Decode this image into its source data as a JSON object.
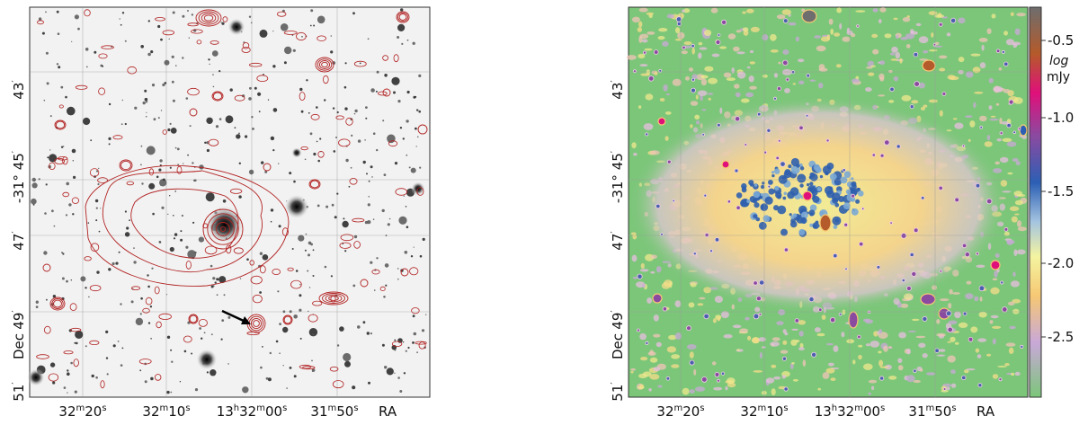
{
  "left_panel": {
    "x_ticks": [
      {
        "main": "32",
        "sup1": "m",
        "mid": "20",
        "sup2": "s"
      },
      {
        "main": "32",
        "sup1": "m",
        "mid": "10",
        "sup2": "s"
      },
      {
        "main": "13",
        "sup1": "h",
        "mid": "32",
        "sup2": "m",
        "tail": "00",
        "sup3": "s"
      },
      {
        "main": "31",
        "sup1": "m",
        "mid": "50",
        "sup2": "s"
      }
    ],
    "x_axis_label": "RA",
    "y_ticks": [
      {
        "text": "43",
        "prime": "′"
      },
      {
        "text": "-31° 45",
        "prime": "′"
      },
      {
        "text": "47",
        "prime": "′"
      },
      {
        "text": "49",
        "prime": "′"
      },
      {
        "text": "51",
        "prime": "′"
      }
    ],
    "y_axis_label": "Dec",
    "contour_color": "#b22222"
  },
  "right_panel": {
    "x_ticks": [
      {
        "main": "32",
        "sup1": "m",
        "mid": "20",
        "sup2": "s"
      },
      {
        "main": "32",
        "sup1": "m",
        "mid": "10",
        "sup2": "s"
      },
      {
        "main": "13",
        "sup1": "h",
        "mid": "32",
        "sup2": "m",
        "tail": "00",
        "sup3": "s"
      },
      {
        "main": "31",
        "sup1": "m",
        "mid": "50",
        "sup2": "s"
      }
    ],
    "x_axis_label": "RA",
    "y_ticks": [
      {
        "text": "43",
        "prime": "′"
      },
      {
        "text": "-31° 45",
        "prime": "′"
      },
      {
        "text": "47",
        "prime": "′"
      },
      {
        "text": "49",
        "prime": "′"
      },
      {
        "text": "51",
        "prime": "′"
      }
    ],
    "y_axis_label": "Dec",
    "colorbar": {
      "label_line1": "log",
      "label_line2": "mJy",
      "ticks": [
        "-0.5",
        "-1.0",
        "-1.5",
        "-2.0",
        "-2.5"
      ],
      "colors": [
        "#6e6e6e",
        "#d45f10",
        "#e0107a",
        "#8a4aa0",
        "#2c5fb4",
        "#7aa8d6",
        "#f4f4a0",
        "#f6c874",
        "#c9a8d8",
        "#7cc67a"
      ]
    }
  }
}
